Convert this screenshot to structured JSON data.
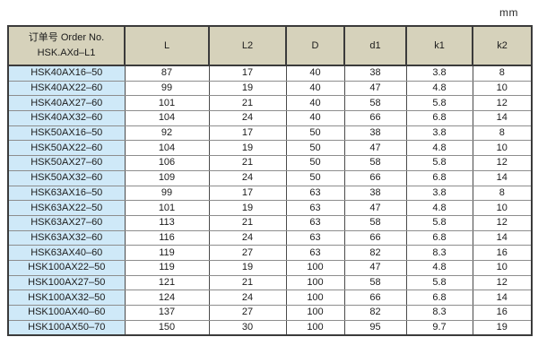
{
  "unit_label": "mm",
  "colors": {
    "header_bg": "#d6d2bb",
    "row_label_bg": "#cfe9f8",
    "outer_border": "#3b3b3b",
    "inner_grid": "#8d8d8d",
    "text": "#1c1c1c"
  },
  "table": {
    "header": {
      "order_no_line1": "订单号 Order No.",
      "order_no_line2": "HSK.AXd–L1",
      "columns": [
        "L",
        "L2",
        "D",
        "d1",
        "k1",
        "k2"
      ]
    },
    "rows": [
      {
        "name": "HSK40AX16–50",
        "values": [
          "87",
          "17",
          "40",
          "38",
          "3.8",
          "8"
        ]
      },
      {
        "name": "HSK40AX22–60",
        "values": [
          "99",
          "19",
          "40",
          "47",
          "4.8",
          "10"
        ]
      },
      {
        "name": "HSK40AX27–60",
        "values": [
          "101",
          "21",
          "40",
          "58",
          "5.8",
          "12"
        ]
      },
      {
        "name": "HSK40AX32–60",
        "values": [
          "104",
          "24",
          "40",
          "66",
          "6.8",
          "14"
        ]
      },
      {
        "name": "HSK50AX16–50",
        "values": [
          "92",
          "17",
          "50",
          "38",
          "3.8",
          "8"
        ]
      },
      {
        "name": "HSK50AX22–60",
        "values": [
          "104",
          "19",
          "50",
          "47",
          "4.8",
          "10"
        ]
      },
      {
        "name": "HSK50AX27–60",
        "values": [
          "106",
          "21",
          "50",
          "58",
          "5.8",
          "12"
        ]
      },
      {
        "name": "HSK50AX32–60",
        "values": [
          "109",
          "24",
          "50",
          "66",
          "6.8",
          "14"
        ]
      },
      {
        "name": "HSK63AX16–50",
        "values": [
          "99",
          "17",
          "63",
          "38",
          "3.8",
          "8"
        ]
      },
      {
        "name": "HSK63AX22–50",
        "values": [
          "101",
          "19",
          "63",
          "47",
          "4.8",
          "10"
        ]
      },
      {
        "name": "HSK63AX27–60",
        "values": [
          "113",
          "21",
          "63",
          "58",
          "5.8",
          "12"
        ]
      },
      {
        "name": "HSK63AX32–60",
        "values": [
          "116",
          "24",
          "63",
          "66",
          "6.8",
          "14"
        ]
      },
      {
        "name": "HSK63AX40–60",
        "values": [
          "119",
          "27",
          "63",
          "82",
          "8.3",
          "16"
        ]
      },
      {
        "name": "HSK100AX22–50",
        "values": [
          "119",
          "19",
          "100",
          "47",
          "4.8",
          "10"
        ]
      },
      {
        "name": "HSK100AX27–50",
        "values": [
          "121",
          "21",
          "100",
          "58",
          "5.8",
          "12"
        ]
      },
      {
        "name": "HSK100AX32–50",
        "values": [
          "124",
          "24",
          "100",
          "66",
          "6.8",
          "14"
        ]
      },
      {
        "name": "HSK100AX40–60",
        "values": [
          "137",
          "27",
          "100",
          "82",
          "8.3",
          "16"
        ]
      },
      {
        "name": "HSK100AX50–70",
        "values": [
          "150",
          "30",
          "100",
          "95",
          "9.7",
          "19"
        ]
      }
    ]
  },
  "chart_data": {
    "type": "table",
    "title": "HSK.AXd–L1 Order No. dimension table (mm)",
    "columns": [
      "Order No.",
      "L",
      "L2",
      "D",
      "d1",
      "k1",
      "k2"
    ]
  }
}
